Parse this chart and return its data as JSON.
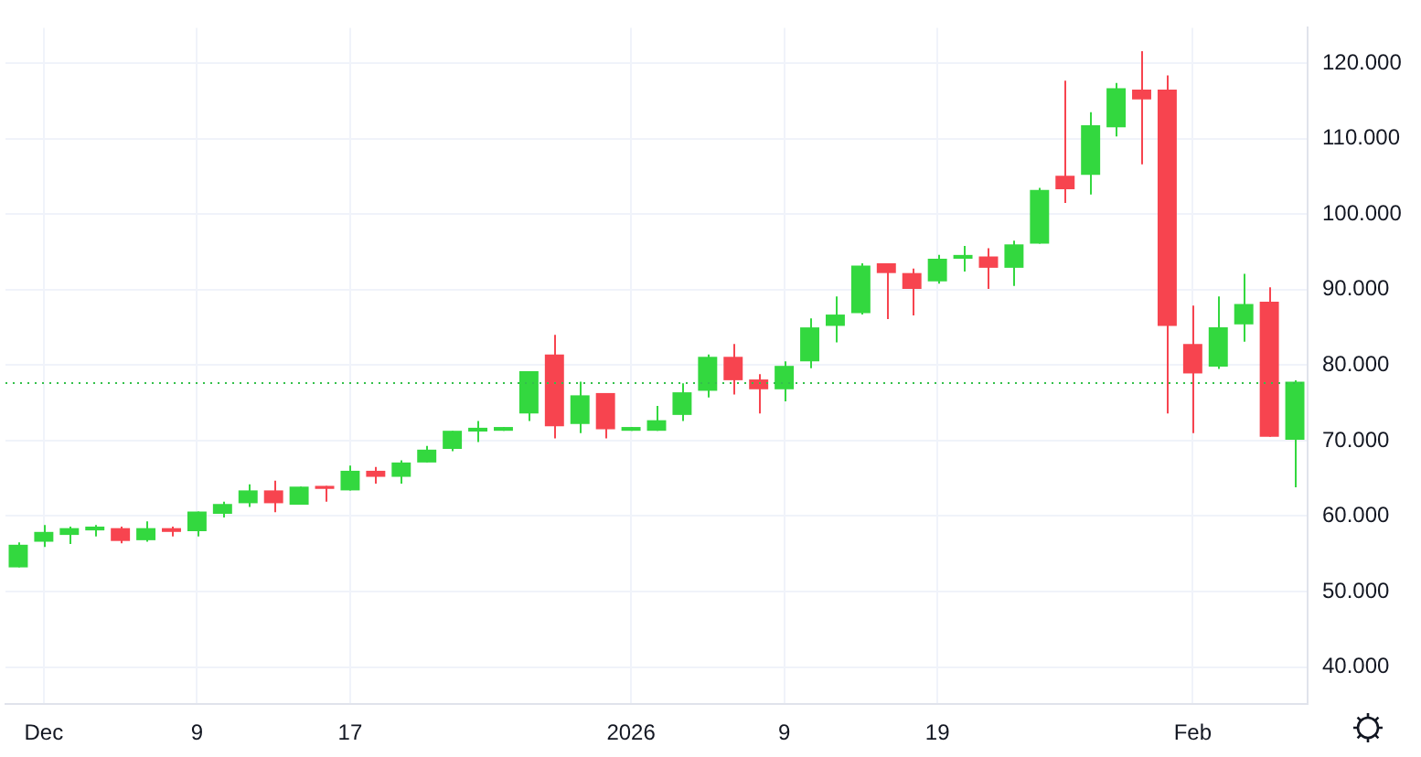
{
  "chart_data": {
    "type": "candlestick",
    "categories": [
      null,
      "Dec",
      null,
      null,
      null,
      null,
      null,
      "9",
      null,
      null,
      null,
      null,
      null,
      "17",
      null,
      null,
      null,
      null,
      null,
      null,
      null,
      null,
      null,
      null,
      "2026",
      null,
      null,
      null,
      null,
      null,
      "9",
      null,
      null,
      null,
      null,
      null,
      "19",
      null,
      null,
      null,
      null,
      null,
      null,
      null,
      null,
      null,
      "Feb",
      null,
      null,
      null,
      null
    ],
    "ohlc": [
      [
        53.2,
        56.5,
        53.2,
        56.2
      ],
      [
        56.6,
        58.8,
        55.9,
        57.9
      ],
      [
        57.5,
        58.6,
        56.3,
        58.4
      ],
      [
        58.1,
        58.8,
        57.3,
        58.6
      ],
      [
        58.4,
        58.6,
        56.4,
        56.7
      ],
      [
        56.8,
        59.3,
        56.6,
        58.4
      ],
      [
        58.4,
        58.6,
        57.3,
        57.9
      ],
      [
        58.0,
        60.6,
        57.3,
        60.6
      ],
      [
        60.3,
        61.9,
        59.8,
        61.6
      ],
      [
        61.7,
        64.2,
        61.2,
        63.4
      ],
      [
        63.4,
        64.7,
        60.5,
        61.7
      ],
      [
        61.5,
        63.9,
        61.5,
        63.9
      ],
      [
        64.0,
        64.0,
        61.9,
        63.6
      ],
      [
        63.4,
        66.7,
        63.4,
        66.0
      ],
      [
        66.0,
        66.5,
        64.3,
        65.2
      ],
      [
        65.2,
        67.4,
        64.3,
        67.1
      ],
      [
        67.1,
        69.3,
        67.1,
        68.8
      ],
      [
        68.9,
        71.3,
        68.6,
        71.3
      ],
      [
        71.2,
        72.6,
        69.8,
        71.7
      ],
      [
        71.3,
        71.8,
        71.3,
        71.8
      ],
      [
        73.6,
        79.2,
        72.6,
        79.2
      ],
      [
        81.4,
        84.0,
        70.3,
        71.9
      ],
      [
        72.2,
        77.8,
        71.0,
        76.0
      ],
      [
        76.3,
        76.3,
        70.3,
        71.5
      ],
      [
        71.3,
        71.8,
        71.3,
        71.8
      ],
      [
        71.3,
        74.6,
        71.3,
        72.7
      ],
      [
        73.4,
        77.6,
        72.6,
        76.4
      ],
      [
        76.6,
        81.4,
        75.7,
        81.1
      ],
      [
        81.1,
        82.8,
        76.1,
        78.0
      ],
      [
        78.1,
        78.8,
        73.6,
        76.8
      ],
      [
        76.8,
        80.5,
        75.2,
        79.9
      ],
      [
        80.5,
        86.2,
        79.6,
        85.0
      ],
      [
        85.2,
        89.1,
        83.0,
        86.7
      ],
      [
        86.9,
        93.5,
        86.7,
        93.2
      ],
      [
        93.5,
        93.5,
        86.1,
        92.2
      ],
      [
        92.2,
        92.8,
        86.6,
        90.1
      ],
      [
        91.1,
        94.6,
        90.8,
        94.1
      ],
      [
        94.1,
        95.8,
        92.4,
        94.6
      ],
      [
        94.4,
        95.5,
        90.1,
        92.9
      ],
      [
        92.9,
        96.5,
        90.5,
        96.0
      ],
      [
        96.1,
        103.5,
        96.1,
        103.2
      ],
      [
        105.1,
        117.7,
        101.5,
        103.3
      ],
      [
        105.2,
        113.5,
        102.6,
        111.8
      ],
      [
        111.5,
        117.4,
        110.3,
        116.7
      ],
      [
        116.5,
        121.6,
        106.6,
        115.2
      ],
      [
        116.5,
        118.4,
        73.6,
        85.2
      ],
      [
        82.8,
        87.9,
        71.0,
        78.9
      ],
      [
        79.8,
        89.1,
        79.5,
        85.0
      ],
      [
        85.4,
        92.1,
        83.1,
        88.1
      ],
      [
        88.4,
        90.3,
        70.5,
        70.5
      ],
      [
        70.1,
        78.0,
        63.8,
        77.8
      ]
    ],
    "colors": [
      "#33d83f",
      "#33d83f",
      "#33d83f",
      "#33d83f",
      "#f7444f",
      "#33d83f",
      "#f7444f",
      "#33d83f",
      "#33d83f",
      "#33d83f",
      "#f7444f",
      "#33d83f",
      "#f7444f",
      "#33d83f",
      "#f7444f",
      "#33d83f",
      "#33d83f",
      "#33d83f",
      "#33d83f",
      "#33d83f",
      "#33d83f",
      "#f7444f",
      "#33d83f",
      "#f7444f",
      "#33d83f",
      "#33d83f",
      "#33d83f",
      "#33d83f",
      "#f7444f",
      "#f7444f",
      "#33d83f",
      "#33d83f",
      "#33d83f",
      "#33d83f",
      "#f7444f",
      "#f7444f",
      "#33d83f",
      "#33d83f",
      "#f7444f",
      "#33d83f",
      "#33d83f",
      "#f7444f",
      "#33d83f",
      "#33d83f",
      "#f7444f",
      "#f7444f",
      "#f7444f",
      "#33d83f",
      "#33d83f",
      "#f7444f",
      "#33d83f"
    ],
    "ylim": [
      35.1,
      124.7
    ],
    "yticks": [
      {
        "value": 40,
        "label": "40.000"
      },
      {
        "value": 50,
        "label": "50.000"
      },
      {
        "value": 60,
        "label": "60.000"
      },
      {
        "value": 70,
        "label": "70.000"
      },
      {
        "value": 80,
        "label": "80.000"
      },
      {
        "value": 90,
        "label": "90.000"
      },
      {
        "value": 100,
        "label": "100.000"
      },
      {
        "value": 110,
        "label": "110.000"
      },
      {
        "value": 120,
        "label": "120.000"
      }
    ],
    "grid": true,
    "ref_lines": [
      {
        "axis": "y",
        "value": 77.8,
        "color": "#33c04a",
        "line_style": "dotted"
      }
    ]
  }
}
